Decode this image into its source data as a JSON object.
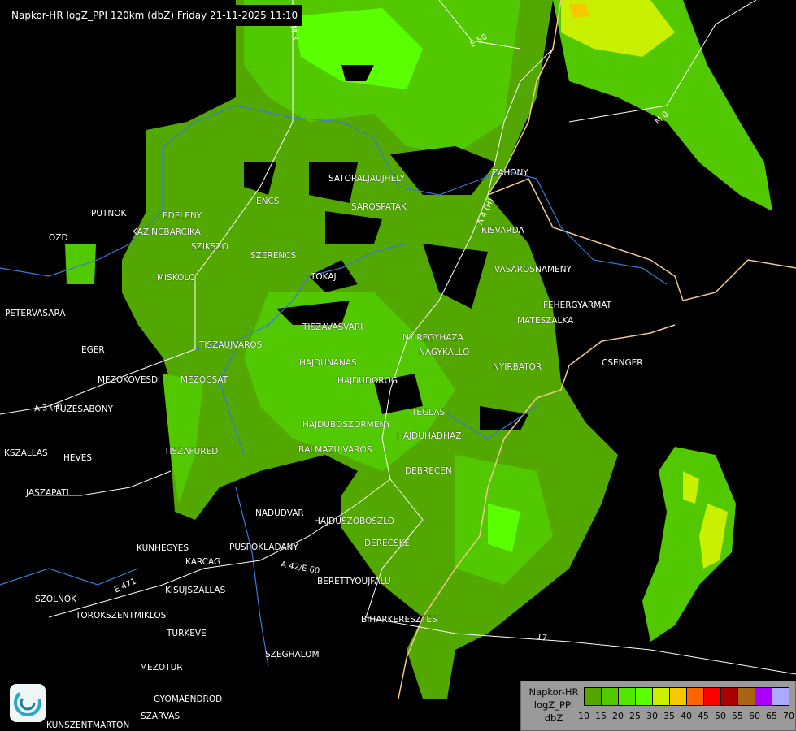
{
  "header": {
    "title": "Napkor-HR logZ_PPI 120km (dbZ) Friday 21-11-2025 11:10"
  },
  "legend": {
    "lines": [
      "Napkor-HR",
      "logZ_PPI",
      "dbZ"
    ],
    "colors": [
      "#52a800",
      "#52c800",
      "#52e600",
      "#5aff00",
      "#c8f000",
      "#f5c800",
      "#ff6400",
      "#ff0000",
      "#aa0000",
      "#a86410",
      "#aa00ff",
      "#aaaaff"
    ],
    "ticks": [
      "10",
      "15",
      "20",
      "25",
      "30",
      "35",
      "40",
      "45",
      "50",
      "55",
      "60",
      "65",
      "70"
    ]
  },
  "cities": [
    "SATORALJAUJHELY",
    "ZAHONY",
    "PUTNOK",
    "EDELENY",
    "ENCS",
    "SAROSPATAK",
    "KAZINCBARCIKA",
    "OZD",
    "SZIKSZO",
    "KISVARDA",
    "SZERENCS",
    "VASAROSNAMENY",
    "MISKOLC",
    "TOKAJ",
    "FEHERGYARMAT",
    "PETERVASARA",
    "MATESZALKA",
    "TISZAVASVARI",
    "NYIREGYHAZA",
    "NAGYKALLO",
    "EGER",
    "TISZAUJVAROS",
    "HAJDUNANAS",
    "CSENGER",
    "NYIRBATOR",
    "MEZOKOVESD",
    "MEZOCSAT",
    "HAJDUDOROG",
    "FUZESABONY",
    "TEGLAS",
    "HAJDUBOSZORMENY",
    "HAJDUHADHAZ",
    "BALMAZUJVAROS",
    "TISZAFURED",
    "KSZALLAS",
    "HEVES",
    "DEBRECEN",
    "JASZAPATI",
    "NADUDVAR",
    "HAJDUSZOBOSZLO",
    "DERECSKE",
    "KUNHEGYES",
    "KARCAG",
    "PUSPOKLADANY",
    "BERETTYOUJFALU",
    "KISUJSZALLAS",
    "SZOLNOK",
    "TOROKSZENTMIKLOS",
    "BIHARKERESZTES",
    "TURKEVE",
    "SZEGHALOM",
    "MEZOTUR",
    "GYOMAENDROD",
    "SZARVAS",
    "KUNSZENTMARTON"
  ],
  "roads": [
    "M 3",
    "E 50",
    "A 4 (H)",
    "M 0",
    "A 3 (H)",
    "A 42/E 60",
    "E 471",
    "17"
  ],
  "colors": {
    "background": "#000000",
    "border": "#f0c890",
    "river": "#3a7ad8",
    "road": "#ffffff",
    "radar_low": "#52a800",
    "radar_mid": "#52c800",
    "radar_high": "#c8f000",
    "radar_peak": "#f5c800"
  }
}
